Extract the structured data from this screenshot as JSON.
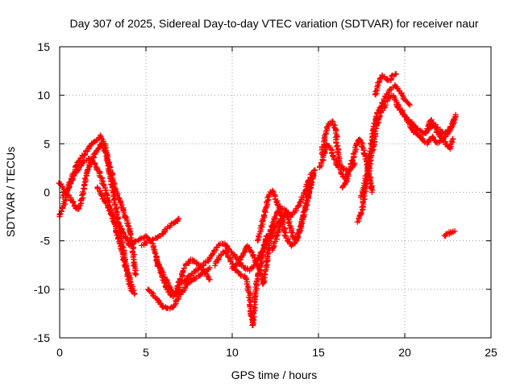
{
  "chart_data": {
    "type": "scatter",
    "title": "Day 307 of 2025, Sidereal Day-to-day VTEC variation (SDTVAR) for receiver naur",
    "xlabel": "GPS time / hours",
    "ylabel": "SDTVAR / TECUs",
    "xlim": [
      0,
      25
    ],
    "ylim": [
      -15,
      15
    ],
    "xticks": [
      0,
      5,
      10,
      15,
      20,
      25
    ],
    "yticks": [
      -15,
      -10,
      -5,
      0,
      5,
      10,
      15
    ],
    "grid": true,
    "marker": "plus",
    "series_color": "#ff0000",
    "tracks": [
      [
        [
          0.0,
          -2.5
        ],
        [
          0.3,
          -1.0
        ],
        [
          0.6,
          1.0
        ],
        [
          0.9,
          2.5
        ],
        [
          1.2,
          3.5
        ],
        [
          1.5,
          4.0
        ],
        [
          1.8,
          4.8
        ],
        [
          2.1,
          5.3
        ],
        [
          2.4,
          5.8
        ],
        [
          2.6,
          5.0
        ],
        [
          2.8,
          3.0
        ],
        [
          3.0,
          1.0
        ],
        [
          3.2,
          -1.0
        ],
        [
          3.4,
          -3.0
        ],
        [
          3.6,
          -5.0
        ],
        [
          3.8,
          -7.0
        ],
        [
          4.0,
          -8.5
        ],
        [
          4.2,
          -9.8
        ],
        [
          4.35,
          -10.5
        ]
      ],
      [
        [
          0.0,
          1.0
        ],
        [
          0.3,
          0.0
        ],
        [
          0.6,
          -0.5
        ],
        [
          0.9,
          -1.5
        ],
        [
          1.1,
          -1.8
        ],
        [
          1.3,
          -0.5
        ],
        [
          1.5,
          1.5
        ],
        [
          1.8,
          3.0
        ],
        [
          2.1,
          4.2
        ],
        [
          2.4,
          5.0
        ],
        [
          2.7,
          4.0
        ],
        [
          3.0,
          2.0
        ],
        [
          3.2,
          0.5
        ],
        [
          3.5,
          -1.0
        ],
        [
          3.8,
          -2.5
        ],
        [
          4.0,
          -3.5
        ],
        [
          4.2,
          -5.0
        ],
        [
          4.3,
          -7.0
        ],
        [
          4.4,
          -8.5
        ]
      ],
      [
        [
          0.2,
          -0.5
        ],
        [
          0.5,
          0.5
        ],
        [
          0.8,
          1.5
        ],
        [
          1.1,
          2.5
        ],
        [
          1.4,
          3.2
        ],
        [
          1.7,
          3.5
        ],
        [
          2.0,
          3.0
        ],
        [
          2.3,
          2.0
        ],
        [
          2.6,
          0.5
        ],
        [
          2.9,
          -1.5
        ],
        [
          3.2,
          -3.5
        ],
        [
          3.5,
          -5.5
        ],
        [
          3.8,
          -7.5
        ],
        [
          4.0,
          -9.0
        ],
        [
          4.2,
          -10.2
        ]
      ],
      [
        [
          2.2,
          0.5
        ],
        [
          2.5,
          -0.5
        ],
        [
          2.8,
          -1.5
        ],
        [
          3.1,
          -2.5
        ],
        [
          3.5,
          -3.5
        ],
        [
          3.8,
          -4.5
        ],
        [
          4.0,
          -5.5
        ],
        [
          4.3,
          -5.2
        ],
        [
          4.7,
          -4.8
        ],
        [
          5.0,
          -4.5
        ],
        [
          5.3,
          -5.0
        ],
        [
          5.5,
          -6.0
        ],
        [
          5.7,
          -7.5
        ],
        [
          5.9,
          -8.5
        ],
        [
          6.2,
          -9.8
        ],
        [
          6.5,
          -10.8
        ],
        [
          6.8,
          -10.5
        ],
        [
          7.0,
          -9.5
        ],
        [
          7.3,
          -9.0
        ],
        [
          7.6,
          -8.5
        ],
        [
          7.9,
          -8.0
        ]
      ],
      [
        [
          5.1,
          -10.0
        ],
        [
          5.4,
          -10.5
        ],
        [
          5.7,
          -11.2
        ],
        [
          6.0,
          -11.8
        ],
        [
          6.3,
          -12.0
        ],
        [
          6.6,
          -11.8
        ],
        [
          6.9,
          -10.8
        ],
        [
          7.2,
          -10.0
        ],
        [
          7.5,
          -9.2
        ],
        [
          7.8,
          -9.0
        ],
        [
          8.1,
          -8.5
        ],
        [
          8.4,
          -8.2
        ],
        [
          8.7,
          -7.8
        ]
      ],
      [
        [
          4.8,
          -5.5
        ],
        [
          5.2,
          -5.0
        ],
        [
          5.5,
          -4.8
        ],
        [
          5.8,
          -4.5
        ],
        [
          6.2,
          -3.8
        ],
        [
          6.5,
          -3.3
        ],
        [
          6.8,
          -3.0
        ],
        [
          6.9,
          -2.7
        ]
      ],
      [
        [
          5.6,
          -7.0
        ],
        [
          5.9,
          -8.0
        ],
        [
          6.2,
          -9.0
        ],
        [
          6.4,
          -10.0
        ],
        [
          6.7,
          -10.5
        ],
        [
          6.9,
          -9.5
        ],
        [
          7.1,
          -8.5
        ],
        [
          7.3,
          -7.5
        ],
        [
          7.6,
          -7.0
        ],
        [
          7.9,
          -7.2
        ],
        [
          8.2,
          -7.8
        ],
        [
          8.5,
          -8.5
        ],
        [
          8.7,
          -9.0
        ]
      ],
      [
        [
          8.0,
          -8.0
        ],
        [
          8.3,
          -7.5
        ],
        [
          8.6,
          -7.0
        ],
        [
          8.9,
          -6.2
        ],
        [
          9.2,
          -5.5
        ],
        [
          9.5,
          -5.2
        ],
        [
          9.8,
          -5.8
        ],
        [
          10.1,
          -6.5
        ],
        [
          10.4,
          -7.2
        ],
        [
          10.7,
          -7.8
        ],
        [
          11.0,
          -8.0
        ],
        [
          11.3,
          -7.5
        ],
        [
          11.6,
          -6.5
        ],
        [
          11.9,
          -5.5
        ],
        [
          12.2,
          -4.0
        ],
        [
          12.5,
          -2.5
        ],
        [
          12.8,
          -1.5
        ],
        [
          13.1,
          -1.8
        ],
        [
          13.4,
          -2.5
        ],
        [
          13.7,
          -1.8
        ],
        [
          14.0,
          -0.8
        ],
        [
          14.3,
          0.5
        ],
        [
          14.6,
          2.0
        ]
      ],
      [
        [
          9.0,
          -7.5
        ],
        [
          9.3,
          -6.5
        ],
        [
          9.6,
          -6.0
        ],
        [
          9.9,
          -7.0
        ],
        [
          10.2,
          -8.0
        ],
        [
          10.5,
          -8.5
        ],
        [
          10.8,
          -8.8
        ],
        [
          11.0,
          -10.5
        ],
        [
          11.1,
          -12.5
        ],
        [
          11.2,
          -13.8
        ],
        [
          11.3,
          -11.5
        ],
        [
          11.4,
          -9.5
        ],
        [
          11.6,
          -8.0
        ],
        [
          11.8,
          -6.0
        ],
        [
          12.0,
          -4.5
        ]
      ],
      [
        [
          10.0,
          -7.8
        ],
        [
          10.3,
          -7.5
        ],
        [
          10.6,
          -6.5
        ],
        [
          10.9,
          -5.5
        ],
        [
          11.2,
          -6.5
        ],
        [
          11.5,
          -7.5
        ],
        [
          11.7,
          -8.5
        ],
        [
          11.8,
          -9.5
        ],
        [
          12.0,
          -7.0
        ],
        [
          12.2,
          -5.0
        ],
        [
          12.5,
          -3.5
        ],
        [
          12.8,
          -2.8
        ]
      ],
      [
        [
          11.5,
          -5.0
        ],
        [
          11.7,
          -3.5
        ],
        [
          11.9,
          -2.0
        ],
        [
          12.1,
          -0.5
        ],
        [
          12.3,
          0.2
        ],
        [
          12.5,
          -0.5
        ],
        [
          12.7,
          -1.5
        ],
        [
          12.9,
          -3.0
        ],
        [
          13.1,
          -4.5
        ],
        [
          13.4,
          -5.5
        ],
        [
          13.7,
          -5.0
        ],
        [
          14.0,
          -3.5
        ],
        [
          14.2,
          -2.0
        ],
        [
          14.4,
          -0.5
        ],
        [
          14.6,
          1.2
        ],
        [
          14.8,
          2.3
        ]
      ],
      [
        [
          12.3,
          -6.0
        ],
        [
          12.5,
          -5.0
        ],
        [
          12.8,
          -3.5
        ],
        [
          13.1,
          -2.0
        ],
        [
          13.3,
          -3.0
        ],
        [
          13.5,
          -4.5
        ],
        [
          13.7,
          -5.0
        ],
        [
          13.9,
          -4.0
        ],
        [
          14.1,
          -2.5
        ],
        [
          14.3,
          -1.0
        ],
        [
          14.5,
          0.5
        ],
        [
          14.7,
          1.8
        ]
      ],
      [
        [
          15.2,
          4.0
        ],
        [
          15.4,
          6.0
        ],
        [
          15.6,
          7.0
        ],
        [
          15.8,
          7.3
        ],
        [
          16.0,
          6.5
        ],
        [
          16.1,
          4.5
        ],
        [
          16.2,
          3.0
        ],
        [
          16.4,
          2.5
        ],
        [
          16.7,
          2.2
        ],
        [
          16.9,
          2.5
        ],
        [
          17.1,
          3.0
        ]
      ],
      [
        [
          15.1,
          2.5
        ],
        [
          15.3,
          3.8
        ],
        [
          15.5,
          5.0
        ],
        [
          15.7,
          4.5
        ],
        [
          15.9,
          3.5
        ],
        [
          16.1,
          2.8
        ],
        [
          16.3,
          2.0
        ],
        [
          16.5,
          1.5
        ],
        [
          16.7,
          2.0
        ]
      ],
      [
        [
          17.3,
          -3.0
        ],
        [
          17.5,
          -2.0
        ],
        [
          17.7,
          0.0
        ],
        [
          17.9,
          2.0
        ],
        [
          18.1,
          4.0
        ],
        [
          18.3,
          6.0
        ],
        [
          18.5,
          7.5
        ],
        [
          18.7,
          8.5
        ],
        [
          18.9,
          9.0
        ]
      ],
      [
        [
          17.5,
          -0.5
        ],
        [
          17.7,
          1.0
        ],
        [
          17.9,
          3.0
        ],
        [
          18.1,
          5.5
        ],
        [
          18.3,
          7.5
        ],
        [
          18.5,
          8.5
        ],
        [
          18.8,
          9.5
        ],
        [
          19.1,
          10.5
        ],
        [
          19.4,
          11.0
        ],
        [
          19.7,
          10.5
        ],
        [
          20.0,
          9.5
        ],
        [
          20.3,
          9.0
        ]
      ],
      [
        [
          18.3,
          10.0
        ],
        [
          18.5,
          11.5
        ],
        [
          18.7,
          12.0
        ],
        [
          18.9,
          11.8
        ],
        [
          19.1,
          11.5
        ],
        [
          19.3,
          12.0
        ],
        [
          19.5,
          12.2
        ]
      ],
      [
        [
          16.4,
          0.5
        ],
        [
          16.6,
          1.0
        ],
        [
          16.8,
          2.2
        ],
        [
          17.0,
          3.5
        ],
        [
          17.2,
          5.0
        ],
        [
          17.4,
          5.5
        ],
        [
          17.6,
          4.5
        ],
        [
          17.8,
          3.0
        ],
        [
          18.0,
          1.5
        ],
        [
          18.1,
          0.0
        ]
      ],
      [
        [
          19.0,
          9.5
        ],
        [
          19.3,
          10.0
        ],
        [
          19.6,
          9.0
        ],
        [
          19.9,
          8.0
        ],
        [
          20.2,
          7.5
        ],
        [
          20.5,
          7.0
        ],
        [
          20.8,
          6.5
        ],
        [
          21.1,
          6.0
        ],
        [
          21.4,
          6.5
        ],
        [
          21.7,
          7.0
        ],
        [
          22.0,
          6.5
        ],
        [
          22.3,
          6.0
        ],
        [
          22.6,
          6.5
        ],
        [
          22.9,
          7.5
        ]
      ],
      [
        [
          19.5,
          9.0
        ],
        [
          19.8,
          8.5
        ],
        [
          20.1,
          7.5
        ],
        [
          20.4,
          6.5
        ],
        [
          20.7,
          6.0
        ],
        [
          21.0,
          5.5
        ],
        [
          21.3,
          5.0
        ],
        [
          21.6,
          5.8
        ],
        [
          21.9,
          5.0
        ],
        [
          22.2,
          5.5
        ],
        [
          22.5,
          6.0
        ],
        [
          22.8,
          7.0
        ],
        [
          22.95,
          8.0
        ]
      ],
      [
        [
          21.2,
          6.0
        ],
        [
          21.5,
          7.5
        ],
        [
          21.8,
          6.5
        ],
        [
          22.1,
          5.5
        ],
        [
          22.4,
          5.0
        ],
        [
          22.6,
          4.5
        ],
        [
          22.8,
          5.5
        ]
      ],
      [
        [
          22.3,
          -4.5
        ],
        [
          22.5,
          -4.3
        ],
        [
          22.7,
          -4.1
        ],
        [
          22.9,
          -4.0
        ]
      ]
    ]
  }
}
